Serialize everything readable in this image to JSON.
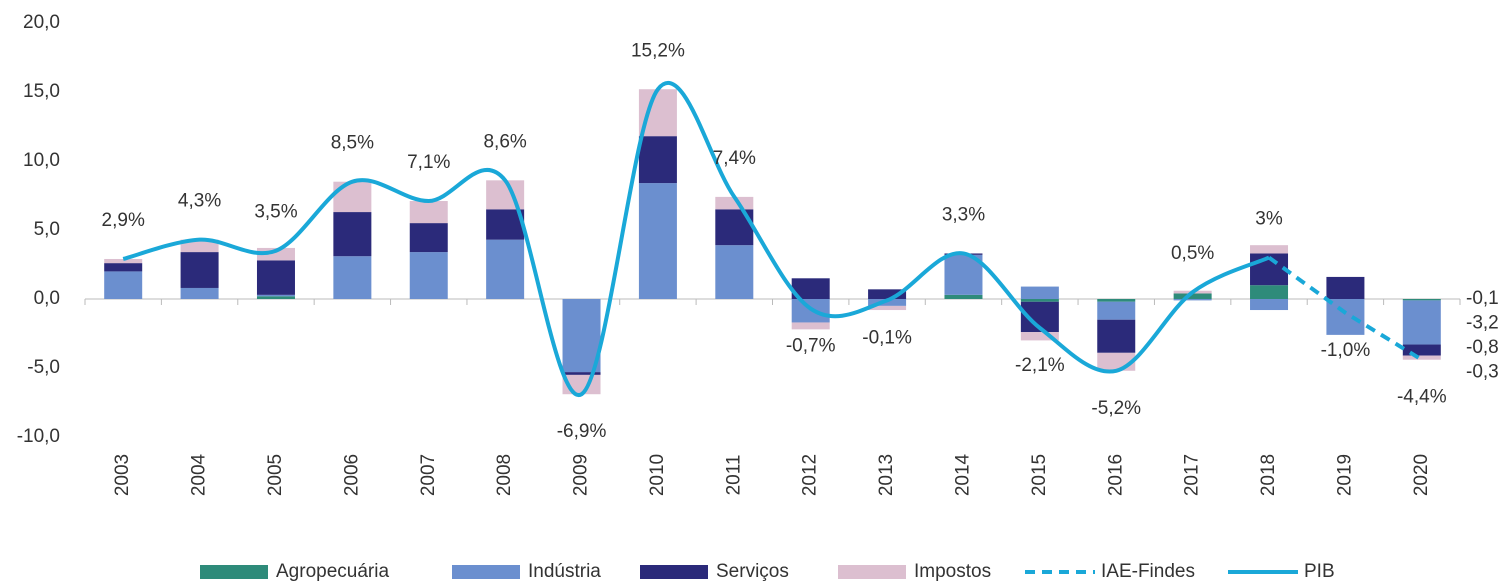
{
  "chart_data": {
    "type": "bar",
    "categories": [
      "2003",
      "2004",
      "2005",
      "2006",
      "2007",
      "2008",
      "2009",
      "2010",
      "2011",
      "2012",
      "2013",
      "2014",
      "2015",
      "2016",
      "2017",
      "2018",
      "2019",
      "2020"
    ],
    "ylim": [
      -10,
      20
    ],
    "yticks": [
      {
        "value": -10,
        "label": "-10,0"
      },
      {
        "value": -5,
        "label": "-5,0"
      },
      {
        "value": 0,
        "label": "0,0"
      },
      {
        "value": 5,
        "label": "5,0"
      },
      {
        "value": 10,
        "label": "10,0"
      },
      {
        "value": 15,
        "label": "15,0"
      },
      {
        "value": 20,
        "label": "20,0"
      }
    ],
    "series": [
      {
        "name": "Agropecuária",
        "color": "#2e8b7a",
        "values": [
          0,
          0,
          0.2,
          0,
          0,
          0,
          0,
          0,
          0,
          0,
          0,
          0.3,
          -0.2,
          -0.2,
          0.4,
          1.0,
          0,
          -0.1
        ],
        "value_labels": [
          null,
          null,
          null,
          null,
          null,
          null,
          null,
          null,
          null,
          null,
          null,
          null,
          null,
          null,
          null,
          null,
          null,
          "-0,1"
        ]
      },
      {
        "name": "Indústria",
        "color": "#6b8fcf",
        "values": [
          2.0,
          0.8,
          0.1,
          3.1,
          3.4,
          4.3,
          -5.3,
          8.4,
          3.9,
          -1.7,
          -0.5,
          2.9,
          0.9,
          -1.3,
          -0.1,
          -0.8,
          -2.6,
          -3.2
        ],
        "value_labels": [
          null,
          null,
          null,
          null,
          null,
          null,
          null,
          null,
          null,
          null,
          null,
          null,
          null,
          null,
          null,
          null,
          null,
          "-3,2"
        ]
      },
      {
        "name": "Serviços",
        "color": "#2b2a7a",
        "values": [
          0.6,
          2.6,
          2.5,
          3.2,
          2.1,
          2.2,
          -0.2,
          3.4,
          2.6,
          1.5,
          0.7,
          0.1,
          -2.2,
          -2.4,
          0,
          2.3,
          1.6,
          -0.8
        ],
        "value_labels": [
          null,
          null,
          null,
          null,
          null,
          null,
          null,
          null,
          null,
          null,
          null,
          null,
          null,
          null,
          null,
          null,
          null,
          "-0,8"
        ]
      },
      {
        "name": "Impostos",
        "color": "#dcbfd0",
        "values": [
          0.3,
          0.9,
          0.9,
          2.2,
          1.6,
          2.1,
          -1.4,
          3.4,
          0.9,
          -0.5,
          -0.3,
          0,
          -0.6,
          -1.3,
          0.2,
          0.6,
          0,
          -0.3
        ],
        "value_labels": [
          null,
          null,
          null,
          null,
          null,
          null,
          null,
          null,
          null,
          null,
          null,
          null,
          null,
          null,
          null,
          null,
          null,
          "-0,3"
        ]
      },
      {
        "name": "IAE-Findes",
        "type": "line",
        "dashed": true,
        "color": "#1aa8d8",
        "values": [
          null,
          null,
          null,
          null,
          null,
          null,
          null,
          null,
          null,
          null,
          null,
          null,
          null,
          null,
          null,
          3,
          -1.0,
          -4.4
        ],
        "value_labels": [
          null,
          null,
          null,
          null,
          null,
          null,
          null,
          null,
          null,
          null,
          null,
          null,
          null,
          null,
          null,
          null,
          "-1,0%",
          "-4,4%"
        ]
      },
      {
        "name": "PIB",
        "type": "line",
        "color": "#1aa8d8",
        "values": [
          2.9,
          4.3,
          3.5,
          8.5,
          7.1,
          8.6,
          -6.9,
          15.2,
          7.4,
          -0.7,
          -0.1,
          3.3,
          -2.1,
          -5.2,
          0.5,
          3,
          null,
          null
        ],
        "value_labels": [
          "2,9%",
          "4,3%",
          "3,5%",
          "8,5%",
          "7,1%",
          "8,6%",
          "-6,9%",
          "15,2%",
          "7,4%",
          "-0,7%",
          "-0,1%",
          "3,3%",
          "-2,1%",
          "-5,2%",
          "0,5%",
          "3%",
          null,
          null
        ]
      }
    ]
  }
}
